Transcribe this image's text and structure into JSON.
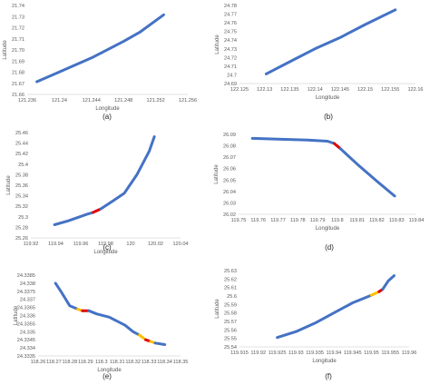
{
  "chart_data": [
    {
      "type": "line",
      "caption": "(a)",
      "xlabel": "Longitude",
      "ylabel": "Latitude",
      "xlim": [
        121.236,
        121.256
      ],
      "ylim": [
        21.66,
        21.74
      ],
      "x_ticks": [
        "121.236",
        "121.24",
        "121.244",
        "121.248",
        "121.252",
        "121.256"
      ],
      "y_ticks": [
        "21.66",
        "21.67",
        "21.68",
        "21.69",
        "21.70",
        "21.71",
        "21.72",
        "21.73",
        "21.74"
      ],
      "series": [
        {
          "color": "#4472c4",
          "points": [
            [
              121.2372,
              21.6714
            ],
            [
              121.24,
              21.6802
            ],
            [
              121.244,
              21.6928
            ],
            [
              121.248,
              21.7077
            ],
            [
              121.25,
              21.7158
            ],
            [
              121.253,
              21.7316
            ]
          ]
        }
      ]
    },
    {
      "type": "line",
      "caption": "(b)",
      "xlabel": "Longitude",
      "ylabel": "Latitude",
      "xlim": [
        122.125,
        122.16
      ],
      "ylim": [
        24.69,
        24.78
      ],
      "x_ticks": [
        "122.125",
        "122.13",
        "122.135",
        "122.14",
        "122.145",
        "122.15",
        "122.155",
        "122.16"
      ],
      "y_ticks": [
        "24.69",
        "24.7",
        "24.71",
        "24.72",
        "24.73",
        "24.74",
        "24.75",
        "24.76",
        "24.77",
        "24.78"
      ],
      "series": [
        {
          "color": "#4472c4",
          "points": [
            [
              122.1303,
              24.7011
            ],
            [
              122.135,
              24.7151
            ],
            [
              122.14,
              24.73
            ],
            [
              122.145,
              24.743
            ],
            [
              122.15,
              24.758
            ],
            [
              122.156,
              24.775
            ]
          ]
        }
      ]
    },
    {
      "type": "line",
      "caption": "(c)",
      "xlabel": "Longitude",
      "ylabel": "Latitude",
      "xlim": [
        119.92,
        120.04
      ],
      "ylim": [
        25.26,
        25.46
      ],
      "x_ticks": [
        "119.92",
        "119.94",
        "119.96",
        "119.98",
        "120",
        "120.02",
        "120.04"
      ],
      "y_ticks": [
        "25.26",
        "25.28",
        "25.3",
        "25.32",
        "25.34",
        "25.36",
        "25.38",
        "25.4",
        "25.42",
        "25.44",
        "25.46"
      ],
      "series": [
        {
          "color": "#4472c4",
          "points": [
            [
              119.939,
              25.285
            ],
            [
              119.95,
              25.2925
            ],
            [
              119.965,
              25.305
            ],
            [
              119.97,
              25.3085
            ]
          ]
        },
        {
          "color": "#e00000",
          "points": [
            [
              119.97,
              25.3085
            ],
            [
              119.976,
              25.315
            ]
          ]
        },
        {
          "color": "#4472c4",
          "points": [
            [
              119.976,
              25.315
            ],
            [
              119.985,
              25.329
            ],
            [
              119.995,
              25.345
            ],
            [
              120.005,
              25.38
            ],
            [
              120.015,
              25.425
            ],
            [
              120.019,
              25.452
            ]
          ]
        }
      ]
    },
    {
      "type": "line",
      "caption": "(d)",
      "xlabel": "Longitude",
      "ylabel": "Latitude",
      "xlim": [
        119.75,
        119.84
      ],
      "ylim": [
        26.02,
        26.09
      ],
      "x_ticks": [
        "119.75",
        "119.76",
        "119.77",
        "119.78",
        "119.79",
        "119.8",
        "119.81",
        "119.82",
        "119.83",
        "119.84"
      ],
      "y_ticks": [
        "26.02",
        "26.03",
        "26.04",
        "26.05",
        "26.06",
        "26.07",
        "26.08",
        "26.09"
      ],
      "series": [
        {
          "color": "#4472c4",
          "points": [
            [
              119.757,
              26.0865
            ],
            [
              119.77,
              26.0858
            ],
            [
              119.785,
              26.085
            ],
            [
              119.795,
              26.084
            ],
            [
              119.7985,
              26.082
            ]
          ]
        },
        {
          "color": "#e00000",
          "points": [
            [
              119.7985,
              26.082
            ],
            [
              119.8015,
              26.0775
            ]
          ]
        },
        {
          "color": "#4472c4",
          "points": [
            [
              119.8015,
              26.0775
            ],
            [
              119.81,
              26.064
            ],
            [
              119.82,
              26.049
            ],
            [
              119.829,
              26.036
            ]
          ]
        }
      ]
    },
    {
      "type": "line",
      "caption": "(e)",
      "xlabel": "Longitude",
      "ylabel": "Latitude",
      "xlim": [
        118.26,
        118.35
      ],
      "ylim": [
        24.3335,
        24.3385
      ],
      "x_ticks": [
        "118.26",
        "118.27",
        "118.28",
        "118.29",
        "118.3",
        "118.31",
        "118.32",
        "118.33",
        "118.34",
        "118.35"
      ],
      "y_ticks": [
        "24.3335",
        "24.334",
        "24.3345",
        "24.335",
        "24.3355",
        "24.336",
        "24.3365",
        "24.337",
        "24.3375",
        "24.338",
        "24.3385"
      ],
      "series": [
        {
          "color": "#4472c4",
          "points": [
            [
              118.271,
              24.338
            ],
            [
              118.275,
              24.3374
            ],
            [
              118.28,
              24.3366
            ],
            [
              118.285,
              24.3364
            ]
          ]
        },
        {
          "color": "#ffc000",
          "points": [
            [
              118.285,
              24.3364
            ],
            [
              118.288,
              24.3363
            ]
          ]
        },
        {
          "color": "#e00000",
          "points": [
            [
              118.288,
              24.3363
            ],
            [
              118.292,
              24.3363
            ]
          ]
        },
        {
          "color": "#4472c4",
          "points": [
            [
              118.292,
              24.3363
            ],
            [
              118.297,
              24.3361
            ],
            [
              118.305,
              24.3359
            ],
            [
              118.315,
              24.3354
            ],
            [
              118.32,
              24.335
            ],
            [
              118.324,
              24.3348
            ]
          ]
        },
        {
          "color": "#ffc000",
          "points": [
            [
              118.324,
              24.3348
            ],
            [
              118.328,
              24.3345
            ]
          ]
        },
        {
          "color": "#e00000",
          "points": [
            [
              118.328,
              24.3345
            ],
            [
              118.331,
              24.3344
            ]
          ]
        },
        {
          "color": "#ffc000",
          "points": [
            [
              118.331,
              24.3344
            ],
            [
              118.334,
              24.3343
            ]
          ]
        },
        {
          "color": "#4472c4",
          "points": [
            [
              118.334,
              24.3343
            ],
            [
              118.34,
              24.3342
            ]
          ]
        }
      ]
    },
    {
      "type": "line",
      "caption": "(f)",
      "xlabel": "Longitude",
      "ylabel": "Latitude",
      "xlim": [
        119.915,
        119.96
      ],
      "ylim": [
        25.54,
        25.63
      ],
      "x_ticks": [
        "119.915",
        "119.92",
        "119.925",
        "119.93",
        "119.935",
        "119.94",
        "119.945",
        "119.95",
        "119.955",
        "119.96"
      ],
      "y_ticks": [
        "25.54",
        "25.55",
        "25.56",
        "25.57",
        "25.58",
        "25.59",
        "25.6",
        "25.61",
        "25.62",
        "25.63"
      ],
      "series": [
        {
          "color": "#4472c4",
          "points": [
            [
              119.925,
              25.551
            ],
            [
              119.93,
              25.558
            ],
            [
              119.935,
              25.568
            ],
            [
              119.94,
              25.58
            ],
            [
              119.945,
              25.592
            ],
            [
              119.95,
              25.601
            ]
          ]
        },
        {
          "color": "#ffc000",
          "points": [
            [
              119.95,
              25.601
            ],
            [
              119.952,
              25.605
            ]
          ]
        },
        {
          "color": "#e00000",
          "points": [
            [
              119.952,
              25.605
            ],
            [
              119.953,
              25.608
            ]
          ]
        },
        {
          "color": "#4472c4",
          "points": [
            [
              119.953,
              25.608
            ],
            [
              119.9545,
              25.618
            ],
            [
              119.956,
              25.624
            ]
          ]
        }
      ]
    }
  ]
}
